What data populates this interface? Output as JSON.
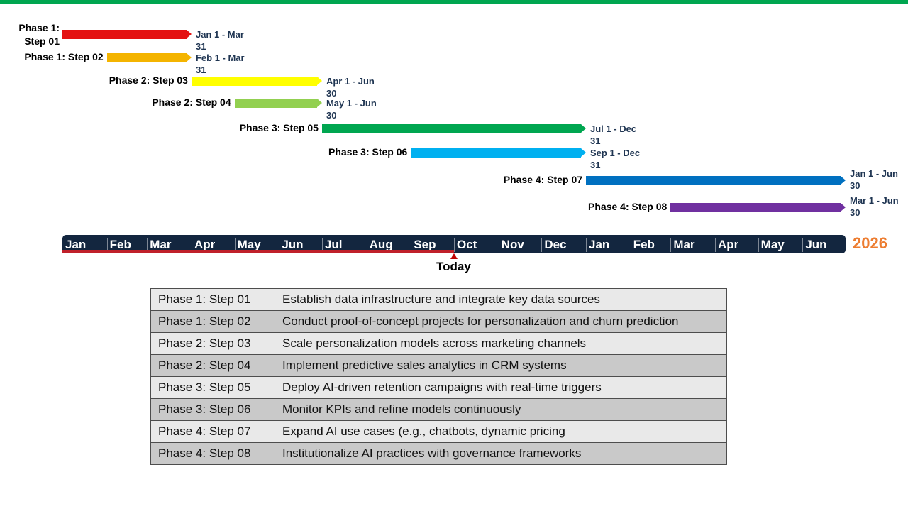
{
  "colors": {
    "top_bar": "#00a650",
    "axis_bg": "#13263f",
    "progress": "#c0202a",
    "year": "#ed7d31"
  },
  "chart_data": {
    "type": "gantt",
    "axis": {
      "months": [
        "Jan",
        "Feb",
        "Mar",
        "Apr",
        "May",
        "Jun",
        "Jul",
        "Aug",
        "Sep",
        "Oct",
        "Nov",
        "Dec",
        "Jan",
        "Feb",
        "Mar",
        "Apr",
        "May",
        "Jun"
      ],
      "start": "2025-01-01",
      "end": "2026-06-30",
      "year_label": "2026"
    },
    "today": {
      "label": "Today",
      "date": "2025-10-01"
    },
    "tasks": [
      {
        "name": "Phase 1: Step 01",
        "start": "2025-01-01",
        "end": "2025-03-31",
        "date_label": "Jan 1 - Mar 31",
        "color": "#e41212"
      },
      {
        "name": "Phase 1: Step 02",
        "start": "2025-02-01",
        "end": "2025-03-31",
        "date_label": "Feb 1 - Mar 31",
        "color": "#f4b400"
      },
      {
        "name": "Phase 2: Step 03",
        "start": "2025-04-01",
        "end": "2025-06-30",
        "date_label": "Apr 1 - Jun 30",
        "color": "#ffff00"
      },
      {
        "name": "Phase 2: Step 04",
        "start": "2025-05-01",
        "end": "2025-06-30",
        "date_label": "May 1 - Jun 30",
        "color": "#92d050"
      },
      {
        "name": "Phase 3: Step 05",
        "start": "2025-07-01",
        "end": "2025-12-31",
        "date_label": "Jul 1 - Dec 31",
        "color": "#00a650"
      },
      {
        "name": "Phase 3: Step 06",
        "start": "2025-09-01",
        "end": "2025-12-31",
        "date_label": "Sep 1 - Dec 31",
        "color": "#00b0f0"
      },
      {
        "name": "Phase 4: Step 07",
        "start": "2026-01-01",
        "end": "2026-06-30",
        "date_label": "Jan 1 - Jun 30",
        "color": "#0070c0"
      },
      {
        "name": "Phase 4: Step 08",
        "start": "2026-03-01",
        "end": "2026-06-30",
        "date_label": "Mar 1 - Jun 30",
        "color": "#7030a0"
      }
    ]
  },
  "table": {
    "rows": [
      {
        "step": "Phase 1: Step 01",
        "description": "Establish data infrastructure and integrate key data sources"
      },
      {
        "step": "Phase 1: Step 02",
        "description": "Conduct proof-of-concept projects for personalization and churn prediction"
      },
      {
        "step": "Phase 2: Step 03",
        "description": "Scale personalization models across marketing channels"
      },
      {
        "step": "Phase 2: Step 04",
        "description": "Implement predictive sales analytics in CRM systems"
      },
      {
        "step": "Phase 3: Step 05",
        "description": "Deploy AI-driven retention campaigns with real-time triggers"
      },
      {
        "step": "Phase 3: Step 06",
        "description": "Monitor KPIs and refine models continuously"
      },
      {
        "step": "Phase 4: Step 07",
        "description": "Expand AI use cases (e.g., chatbots, dynamic pricing"
      },
      {
        "step": "Phase 4: Step 08",
        "description": "Institutionalize AI practices with governance frameworks"
      }
    ]
  }
}
